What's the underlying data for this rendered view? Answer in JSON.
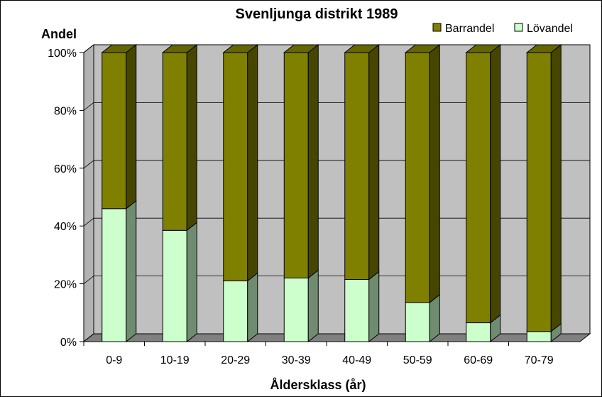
{
  "chart_data": {
    "type": "bar",
    "stacked": true,
    "percent_stacked": true,
    "three_d": true,
    "title": "Svenljunga distrikt 1989",
    "ylabel": "Andel",
    "xlabel": "Åldersklass (år)",
    "categories": [
      "0-9",
      "10-19",
      "20-29",
      "30-39",
      "40-49",
      "50-59",
      "60-69",
      "70-79"
    ],
    "y_ticks": [
      "0%",
      "20%",
      "40%",
      "60%",
      "80%",
      "100%"
    ],
    "ylim": [
      0,
      100
    ],
    "series": [
      {
        "name": "Lövandel",
        "color": "#ccffcc",
        "values": [
          46,
          38.5,
          21,
          22,
          21.5,
          13.5,
          6.5,
          3.5
        ]
      },
      {
        "name": "Barrandel",
        "color": "#808000",
        "values": [
          54,
          61.5,
          79,
          78,
          78.5,
          86.5,
          93.5,
          96.5
        ]
      }
    ],
    "legend": {
      "placement": "top-right",
      "order": [
        "Barrandel",
        "Lövandel"
      ]
    },
    "grid": true,
    "colors": {
      "wall": "#c0c0c0",
      "floor": "#808080",
      "gridline": "#000000"
    }
  }
}
